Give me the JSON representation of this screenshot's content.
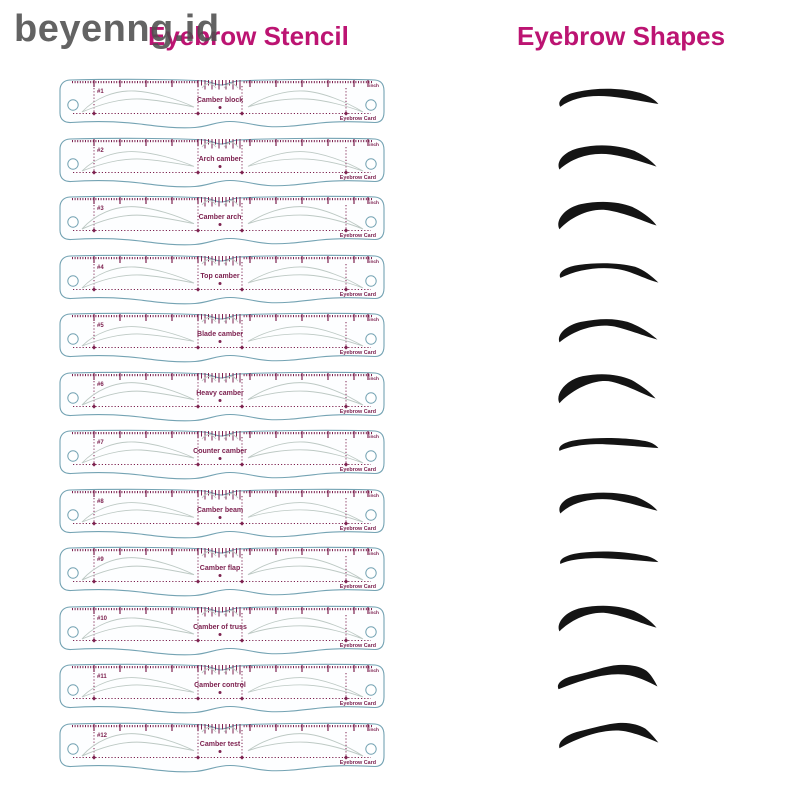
{
  "watermark": {
    "text": "beyenng.id"
  },
  "headers": {
    "left": "Eyebrow Stencil",
    "right": "Eyebrow Shapes"
  },
  "colors": {
    "header_text": "#bc1472",
    "watermark_text": "#4e4e4e",
    "card_outline": "#74a3b3",
    "card_markings": "#7d2250",
    "brow_outline": "#bdc9c4",
    "silhouette": "#141414"
  },
  "card_common": {
    "unit_label": "inch",
    "brand_label": "Eyebrow Card"
  },
  "cards": [
    {
      "number": "#1",
      "style_name": "Camber block"
    },
    {
      "number": "#2",
      "style_name": "Arch camber"
    },
    {
      "number": "#3",
      "style_name": "Camber arch"
    },
    {
      "number": "#4",
      "style_name": "Top camber"
    },
    {
      "number": "#5",
      "style_name": "Blade camber"
    },
    {
      "number": "#6",
      "style_name": "Heavy camber"
    },
    {
      "number": "#7",
      "style_name": "Counter camber"
    },
    {
      "number": "#8",
      "style_name": "Camber beam"
    },
    {
      "number": "#9",
      "style_name": "Camber flap"
    },
    {
      "number": "#10",
      "style_name": "Camber of truss"
    },
    {
      "number": "#11",
      "style_name": "Camber control"
    },
    {
      "number": "#12",
      "style_name": "Camber test"
    }
  ],
  "shapes": {
    "count": 12
  }
}
